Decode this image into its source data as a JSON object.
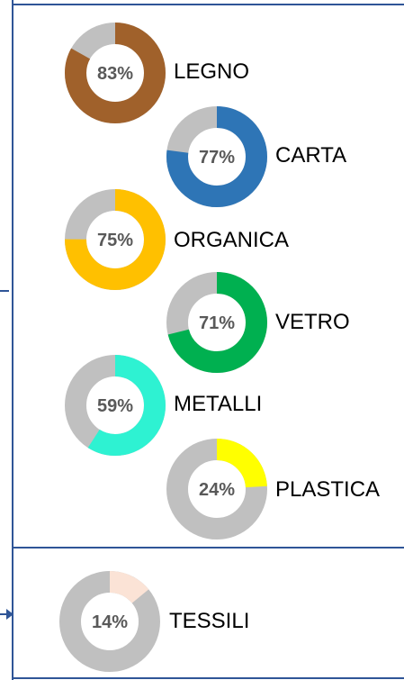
{
  "colors": {
    "frame": "#2f5597",
    "track": "#c0c0c0",
    "text_pct": "#595959",
    "text_label": "#000000"
  },
  "chart_data": [
    {
      "type": "pie",
      "label": "LEGNO",
      "value": 83,
      "percent_label": "83%",
      "color": "#a0612b"
    },
    {
      "type": "pie",
      "label": "CARTA",
      "value": 77,
      "percent_label": "77%",
      "color": "#2e75b6"
    },
    {
      "type": "pie",
      "label": "ORGANICA",
      "value": 75,
      "percent_label": "75%",
      "color": "#ffc000"
    },
    {
      "type": "pie",
      "label": "VETRO",
      "value": 71,
      "percent_label": "71%",
      "color": "#00b050"
    },
    {
      "type": "pie",
      "label": "METALLI",
      "value": 59,
      "percent_label": "59%",
      "color": "#2ef2d2"
    },
    {
      "type": "pie",
      "label": "PLASTICA",
      "value": 24,
      "percent_label": "24%",
      "color": "#ffff00"
    },
    {
      "type": "pie",
      "label": "TESSILI",
      "value": 14,
      "percent_label": "14%",
      "color": "#fbe3d6"
    }
  ]
}
